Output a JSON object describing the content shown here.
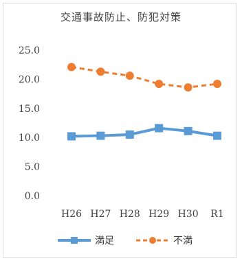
{
  "chart_data": {
    "type": "line",
    "title": "交通事故防止、防犯対策",
    "categories": [
      "H26",
      "H27",
      "H28",
      "H29",
      "H30",
      "R1"
    ],
    "ylim": [
      0,
      25
    ],
    "yticks": [
      "25.0",
      "20.0",
      "15.0",
      "10.0",
      "5.0",
      "0.0"
    ],
    "grid": false,
    "legend_position": "bottom",
    "series": [
      {
        "name": "満足",
        "values": [
          10.2,
          10.3,
          10.5,
          11.6,
          11.1,
          10.3
        ],
        "color": "#5b9bd5",
        "style": "solid",
        "marker": "square"
      },
      {
        "name": "不満",
        "values": [
          22.1,
          21.3,
          20.6,
          19.2,
          18.6,
          19.2
        ],
        "color": "#ed7d31",
        "style": "dashed",
        "marker": "circle"
      }
    ]
  }
}
